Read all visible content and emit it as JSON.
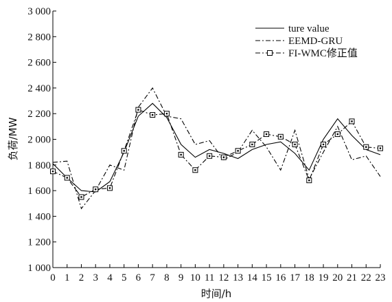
{
  "chart_data": {
    "type": "line",
    "title": "",
    "xlabel": "时间/h",
    "ylabel": "负荷/MW",
    "x": [
      0,
      1,
      2,
      3,
      4,
      5,
      6,
      7,
      8,
      9,
      10,
      11,
      12,
      13,
      14,
      15,
      16,
      17,
      18,
      19,
      20,
      21,
      22,
      23
    ],
    "xlim": [
      0,
      23
    ],
    "ylim": [
      1000,
      3000
    ],
    "x_ticks": [
      "0",
      "1",
      "2",
      "3",
      "4",
      "5",
      "6",
      "7",
      "8",
      "9",
      "10",
      "11",
      "12",
      "13",
      "14",
      "15",
      "16",
      "17",
      "18",
      "19",
      "20",
      "21",
      "22",
      "23"
    ],
    "y_ticks": [
      {
        "value": 1000,
        "label": "1 000"
      },
      {
        "value": 1200,
        "label": "1 200"
      },
      {
        "value": 1400,
        "label": "1 400"
      },
      {
        "value": 1600,
        "label": "1 600"
      },
      {
        "value": 1800,
        "label": "1 800"
      },
      {
        "value": 2000,
        "label": "2 000"
      },
      {
        "value": 2200,
        "label": "2 200"
      },
      {
        "value": 2400,
        "label": "2 400"
      },
      {
        "value": 2600,
        "label": "2 600"
      },
      {
        "value": 2800,
        "label": "2 800"
      },
      {
        "value": 3000,
        "label": "3 000"
      }
    ],
    "grid": false,
    "legend_position": "top-right",
    "series": [
      {
        "name": "ture value",
        "style": "solid",
        "marker": "none",
        "color": "#000000",
        "values": [
          1810,
          1700,
          1600,
          1590,
          1670,
          1900,
          2180,
          2280,
          2170,
          1960,
          1860,
          1920,
          1890,
          1850,
          1920,
          1960,
          1980,
          1890,
          1760,
          2000,
          2160,
          2030,
          1920,
          1880
        ]
      },
      {
        "name": "EEMD-GRU",
        "style": "dashdot",
        "marker": "none",
        "color": "#000000",
        "values": [
          1820,
          1830,
          1460,
          1600,
          1800,
          1760,
          2250,
          2400,
          2180,
          2160,
          1960,
          1990,
          1840,
          1900,
          2070,
          1940,
          1760,
          2070,
          1690,
          1900,
          2100,
          1840,
          1870,
          1710
        ]
      },
      {
        "name": "FI-WMC修正值",
        "style": "dashdot",
        "marker": "square",
        "color": "#000000",
        "values": [
          1750,
          1700,
          1550,
          1610,
          1620,
          1910,
          2230,
          2190,
          2200,
          1880,
          1760,
          1870,
          1860,
          1910,
          1960,
          2040,
          2020,
          1960,
          1680,
          1960,
          2040,
          2140,
          1940,
          1930
        ]
      }
    ]
  }
}
